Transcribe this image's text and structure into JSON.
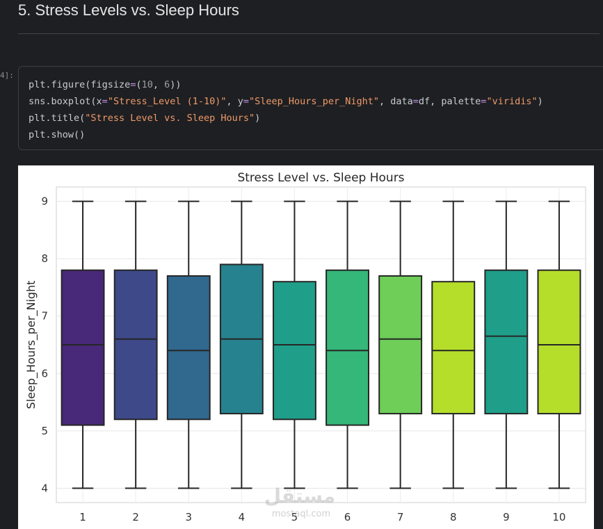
{
  "section_heading": "5. Stress Levels vs. Sleep Hours",
  "cell": {
    "prompt": "4]:",
    "code_lines": [
      [
        {
          "t": "plt.figure(figsize",
          "c": ""
        },
        {
          "t": "=",
          "c": "eq"
        },
        {
          "t": "(",
          "c": ""
        },
        {
          "t": "10",
          "c": "num"
        },
        {
          "t": ", ",
          "c": ""
        },
        {
          "t": "6",
          "c": "num"
        },
        {
          "t": "))",
          "c": ""
        }
      ],
      [
        {
          "t": "sns.boxplot(x",
          "c": ""
        },
        {
          "t": "=",
          "c": "eq"
        },
        {
          "t": "\"Stress_Level (1-10)\"",
          "c": "str"
        },
        {
          "t": ", y",
          "c": ""
        },
        {
          "t": "=",
          "c": "eq"
        },
        {
          "t": "\"Sleep_Hours_per_Night\"",
          "c": "str"
        },
        {
          "t": ", data",
          "c": ""
        },
        {
          "t": "=",
          "c": "eq"
        },
        {
          "t": "df, palette",
          "c": ""
        },
        {
          "t": "=",
          "c": "eq"
        },
        {
          "t": "\"viridis\"",
          "c": "str"
        },
        {
          "t": ")",
          "c": ""
        }
      ],
      [
        {
          "t": "plt.title(",
          "c": ""
        },
        {
          "t": "\"Stress Level vs. Sleep Hours\"",
          "c": "str"
        },
        {
          "t": ")",
          "c": ""
        }
      ],
      [
        {
          "t": "plt.show()",
          "c": ""
        }
      ]
    ]
  },
  "watermark": {
    "logo": "مستقل",
    "site": "mostaql.com"
  },
  "chart_data": {
    "type": "box",
    "title": "Stress Level vs. Sleep Hours",
    "xlabel": "Stress_Level (1-10)",
    "ylabel": "Sleep_Hours_per_Night",
    "ylim": [
      3.75,
      9.25
    ],
    "yticks": [
      4,
      5,
      6,
      7,
      8,
      9
    ],
    "grid": true,
    "categories": [
      "1",
      "2",
      "3",
      "4",
      "5",
      "6",
      "7",
      "8",
      "9",
      "10"
    ],
    "boxes": [
      {
        "min": 4,
        "q1": 5.1,
        "median": 6.5,
        "q3": 7.8,
        "max": 9,
        "color": "#482878"
      },
      {
        "min": 4,
        "q1": 5.2,
        "median": 6.6,
        "q3": 7.8,
        "max": 9,
        "color": "#3e4989"
      },
      {
        "min": 4,
        "q1": 5.2,
        "median": 6.4,
        "q3": 7.7,
        "max": 9,
        "color": "#31688e"
      },
      {
        "min": 4,
        "q1": 5.3,
        "median": 6.6,
        "q3": 7.9,
        "max": 9,
        "color": "#26828e"
      },
      {
        "min": 4,
        "q1": 5.2,
        "median": 6.5,
        "q3": 7.6,
        "max": 9,
        "color": "#1f9e89"
      },
      {
        "min": 4,
        "q1": 5.1,
        "median": 6.4,
        "q3": 7.8,
        "max": 9,
        "color": "#35b779"
      },
      {
        "min": 4,
        "q1": 5.3,
        "median": 6.6,
        "q3": 7.7,
        "max": 9,
        "color": "#6ece58"
      },
      {
        "min": 4,
        "q1": 5.3,
        "median": 6.4,
        "q3": 7.6,
        "max": 9,
        "color": "#b5de2b"
      },
      {
        "min": 4,
        "q1": 5.3,
        "median": 6.65,
        "q3": 7.8,
        "max": 9,
        "color": "#1f9e89"
      },
      {
        "min": 4,
        "q1": 5.3,
        "median": 6.5,
        "q3": 7.8,
        "max": 9,
        "color": "#b5de2b"
      }
    ]
  }
}
